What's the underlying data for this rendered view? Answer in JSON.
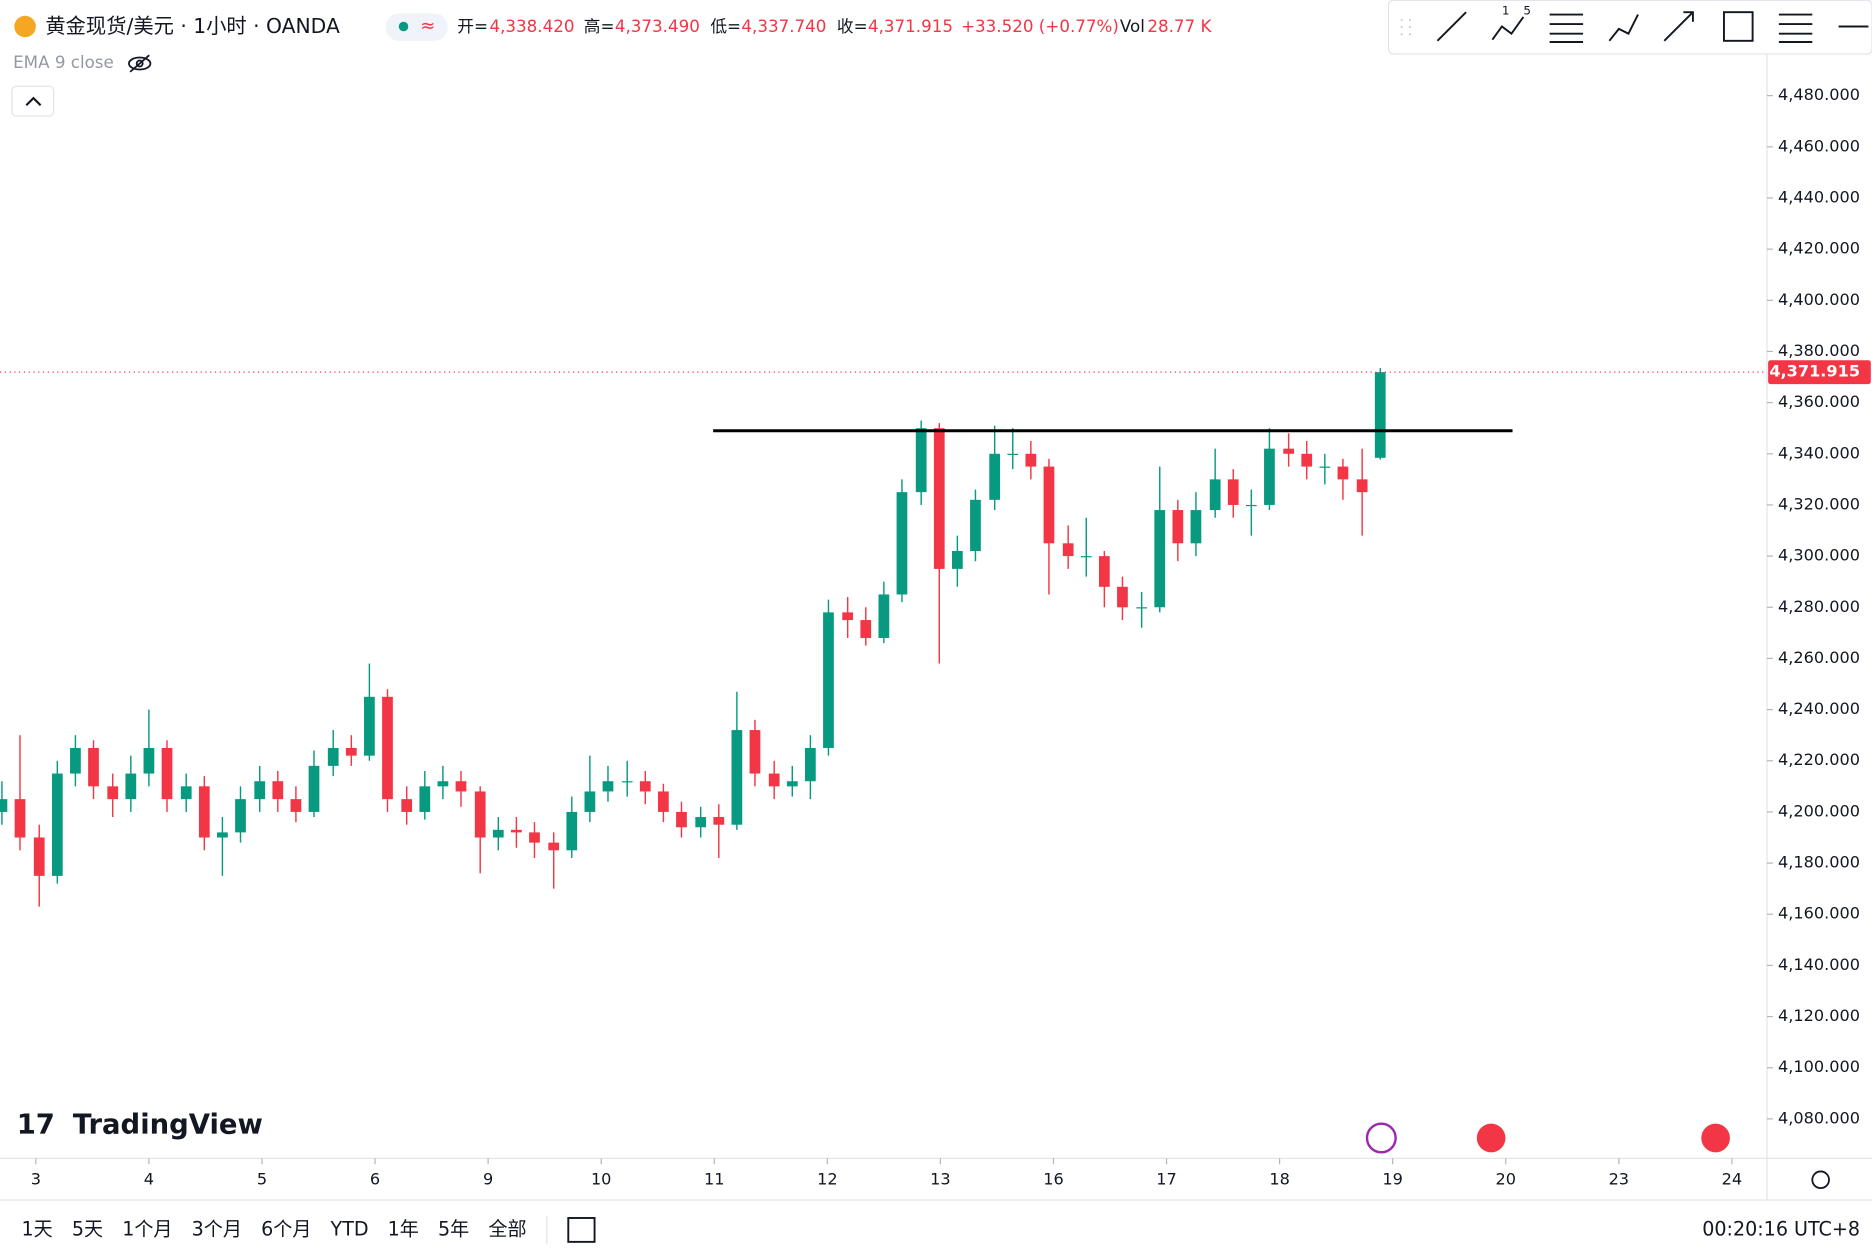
{
  "chart_data": {
    "type": "candlestick",
    "title": "黄金现货/美元 · 1小时 · OANDA",
    "ohlc_header": {
      "open_label": "开=",
      "open": "4,338.420",
      "high_label": "高=",
      "high": "4,373.490",
      "low_label": "低=",
      "low": "4,337.740",
      "close_label": "收=",
      "close": "4,371.915",
      "change": "+33.520 (+0.77%)",
      "vol_label": "Vol",
      "vol": "28.77 K"
    },
    "indicator": "EMA 9 close",
    "logo": "TradingView",
    "up_color": "#089981",
    "down_color": "#f23645",
    "x": [
      -0.3,
      -0.14,
      0.03,
      0.19,
      0.35,
      0.51,
      0.68,
      0.84,
      1.0,
      1.16,
      1.33,
      1.49,
      1.65,
      1.81,
      1.98,
      2.14,
      2.3,
      2.46,
      2.63,
      2.79,
      2.95,
      3.11,
      3.28,
      3.44,
      3.6,
      3.76,
      3.93,
      4.09,
      4.25,
      4.41,
      4.58,
      4.74,
      4.9,
      5.06,
      5.23,
      5.39,
      5.55,
      5.71,
      5.88,
      6.04,
      6.2,
      6.36,
      6.53,
      6.69,
      6.85,
      7.01,
      7.18,
      7.34,
      7.5,
      7.66,
      7.83,
      7.99,
      8.15,
      8.31,
      8.48,
      8.64,
      8.8,
      8.96,
      9.13,
      9.29,
      9.45,
      9.61,
      9.78,
      9.94,
      10.1,
      10.26,
      10.43,
      10.59,
      10.75,
      10.91,
      11.08,
      11.24,
      11.4,
      11.56,
      11.73,
      11.89
    ],
    "candles": [
      [
        4200,
        4212,
        4195,
        4205
      ],
      [
        4205,
        4230,
        4185,
        4190
      ],
      [
        4190,
        4195,
        4163,
        4175
      ],
      [
        4175,
        4220,
        4172,
        4215
      ],
      [
        4215,
        4230,
        4210,
        4225
      ],
      [
        4225,
        4228,
        4205,
        4210
      ],
      [
        4210,
        4215,
        4198,
        4205
      ],
      [
        4205,
        4222,
        4200,
        4215
      ],
      [
        4215,
        4240,
        4210,
        4225
      ],
      [
        4225,
        4228,
        4200,
        4205
      ],
      [
        4205,
        4215,
        4200,
        4210
      ],
      [
        4210,
        4214,
        4185,
        4190
      ],
      [
        4190,
        4198,
        4175,
        4192
      ],
      [
        4192,
        4210,
        4188,
        4205
      ],
      [
        4205,
        4218,
        4200,
        4212
      ],
      [
        4212,
        4216,
        4200,
        4205
      ],
      [
        4205,
        4210,
        4196,
        4200
      ],
      [
        4200,
        4224,
        4198,
        4218
      ],
      [
        4218,
        4232,
        4214,
        4225
      ],
      [
        4225,
        4230,
        4218,
        4222
      ],
      [
        4222,
        4258,
        4220,
        4245
      ],
      [
        4245,
        4248,
        4200,
        4205
      ],
      [
        4205,
        4210,
        4195,
        4200
      ],
      [
        4200,
        4216,
        4197,
        4210
      ],
      [
        4210,
        4218,
        4205,
        4212
      ],
      [
        4212,
        4216,
        4202,
        4208
      ],
      [
        4208,
        4210,
        4176,
        4190
      ],
      [
        4190,
        4198,
        4185,
        4193
      ],
      [
        4193,
        4198,
        4186,
        4192
      ],
      [
        4192,
        4196,
        4182,
        4188
      ],
      [
        4188,
        4192,
        4170,
        4185
      ],
      [
        4185,
        4206,
        4182,
        4200
      ],
      [
        4200,
        4222,
        4196,
        4208
      ],
      [
        4208,
        4218,
        4204,
        4212
      ],
      [
        4212,
        4220,
        4206,
        4212
      ],
      [
        4212,
        4216,
        4203,
        4208
      ],
      [
        4208,
        4211,
        4196,
        4200
      ],
      [
        4200,
        4204,
        4190,
        4194
      ],
      [
        4194,
        4202,
        4190,
        4198
      ],
      [
        4198,
        4203,
        4182,
        4195
      ],
      [
        4195,
        4247,
        4193,
        4232
      ],
      [
        4232,
        4236,
        4210,
        4215
      ],
      [
        4215,
        4220,
        4205,
        4210
      ],
      [
        4210,
        4218,
        4206,
        4212
      ],
      [
        4212,
        4230,
        4205,
        4225
      ],
      [
        4225,
        4283,
        4222,
        4278
      ],
      [
        4278,
        4284,
        4268,
        4275
      ],
      [
        4275,
        4280,
        4265,
        4268
      ],
      [
        4268,
        4290,
        4266,
        4285
      ],
      [
        4285,
        4330,
        4282,
        4325
      ],
      [
        4325,
        4353,
        4320,
        4350
      ],
      [
        4350,
        4352,
        4258,
        4295
      ],
      [
        4295,
        4308,
        4288,
        4302
      ],
      [
        4302,
        4326,
        4298,
        4322
      ],
      [
        4322,
        4351,
        4318,
        4340
      ],
      [
        4340,
        4350,
        4334,
        4340
      ],
      [
        4340,
        4345,
        4330,
        4335
      ],
      [
        4335,
        4338,
        4285,
        4305
      ],
      [
        4305,
        4312,
        4295,
        4300
      ],
      [
        4300,
        4315,
        4292,
        4300
      ],
      [
        4300,
        4302,
        4280,
        4288
      ],
      [
        4288,
        4292,
        4275,
        4280
      ],
      [
        4280,
        4286,
        4272,
        4280
      ],
      [
        4280,
        4335,
        4278,
        4318
      ],
      [
        4318,
        4322,
        4298,
        4305
      ],
      [
        4305,
        4325,
        4300,
        4318
      ],
      [
        4318,
        4342,
        4315,
        4330
      ],
      [
        4330,
        4334,
        4315,
        4320
      ],
      [
        4320,
        4326,
        4308,
        4320
      ],
      [
        4320,
        4350,
        4318,
        4342
      ],
      [
        4342,
        4348,
        4335,
        4340
      ],
      [
        4340,
        4345,
        4330,
        4335
      ],
      [
        4335,
        4340,
        4328,
        4335
      ],
      [
        4335,
        4338,
        4322,
        4330
      ],
      [
        4330,
        4342,
        4308,
        4325
      ],
      [
        4338.42,
        4373.49,
        4337.74,
        4371.915
      ]
    ],
    "last_price_label": "4,371.915",
    "level_line": {
      "value": 4349,
      "x": [
        5.99,
        13.06
      ]
    },
    "xlim": [
      -0.317,
      15.31
    ],
    "xticks": [
      {
        "value": 0,
        "label": "3"
      },
      {
        "value": 1,
        "label": "4"
      },
      {
        "value": 2,
        "label": "5"
      },
      {
        "value": 3,
        "label": "6"
      },
      {
        "value": 4,
        "label": "9"
      },
      {
        "value": 5,
        "label": "10"
      },
      {
        "value": 6,
        "label": "11"
      },
      {
        "value": 7,
        "label": "12"
      },
      {
        "value": 8,
        "label": "13"
      },
      {
        "value": 9,
        "label": "16"
      },
      {
        "value": 10,
        "label": "17"
      },
      {
        "value": 11,
        "label": "18"
      },
      {
        "value": 12,
        "label": "19"
      },
      {
        "value": 13,
        "label": "20"
      },
      {
        "value": 14,
        "label": "23"
      },
      {
        "value": 15,
        "label": "24"
      }
    ],
    "ylim": [
      4064.6,
      4517.3
    ],
    "yticks": [
      {
        "value": 4080,
        "label": "4,080.000"
      },
      {
        "value": 4100,
        "label": "4,100.000"
      },
      {
        "value": 4120,
        "label": "4,120.000"
      },
      {
        "value": 4140,
        "label": "4,140.000"
      },
      {
        "value": 4160,
        "label": "4,160.000"
      },
      {
        "value": 4180,
        "label": "4,180.000"
      },
      {
        "value": 4200,
        "label": "4,200.000"
      },
      {
        "value": 4220,
        "label": "4,220.000"
      },
      {
        "value": 4240,
        "label": "4,240.000"
      },
      {
        "value": 4260,
        "label": "4,260.000"
      },
      {
        "value": 4280,
        "label": "4,280.000"
      },
      {
        "value": 4300,
        "label": "4,300.000"
      },
      {
        "value": 4320,
        "label": "4,320.000"
      },
      {
        "value": 4340,
        "label": "4,340.000"
      },
      {
        "value": 4360,
        "label": "4,360.000"
      },
      {
        "value": 4380,
        "label": "4,380.000"
      },
      {
        "value": 4400,
        "label": "4,400.000"
      },
      {
        "value": 4420,
        "label": "4,420.000"
      },
      {
        "value": 4440,
        "label": "4,440.000"
      },
      {
        "value": 4460,
        "label": "4,460.000"
      },
      {
        "value": 4480,
        "label": "4,480.000"
      }
    ],
    "ranges": [
      "1天",
      "5天",
      "1个月",
      "3个月",
      "6个月",
      "YTD",
      "1年",
      "5年",
      "全部"
    ],
    "clock": "00:20:16 UTC+8"
  }
}
